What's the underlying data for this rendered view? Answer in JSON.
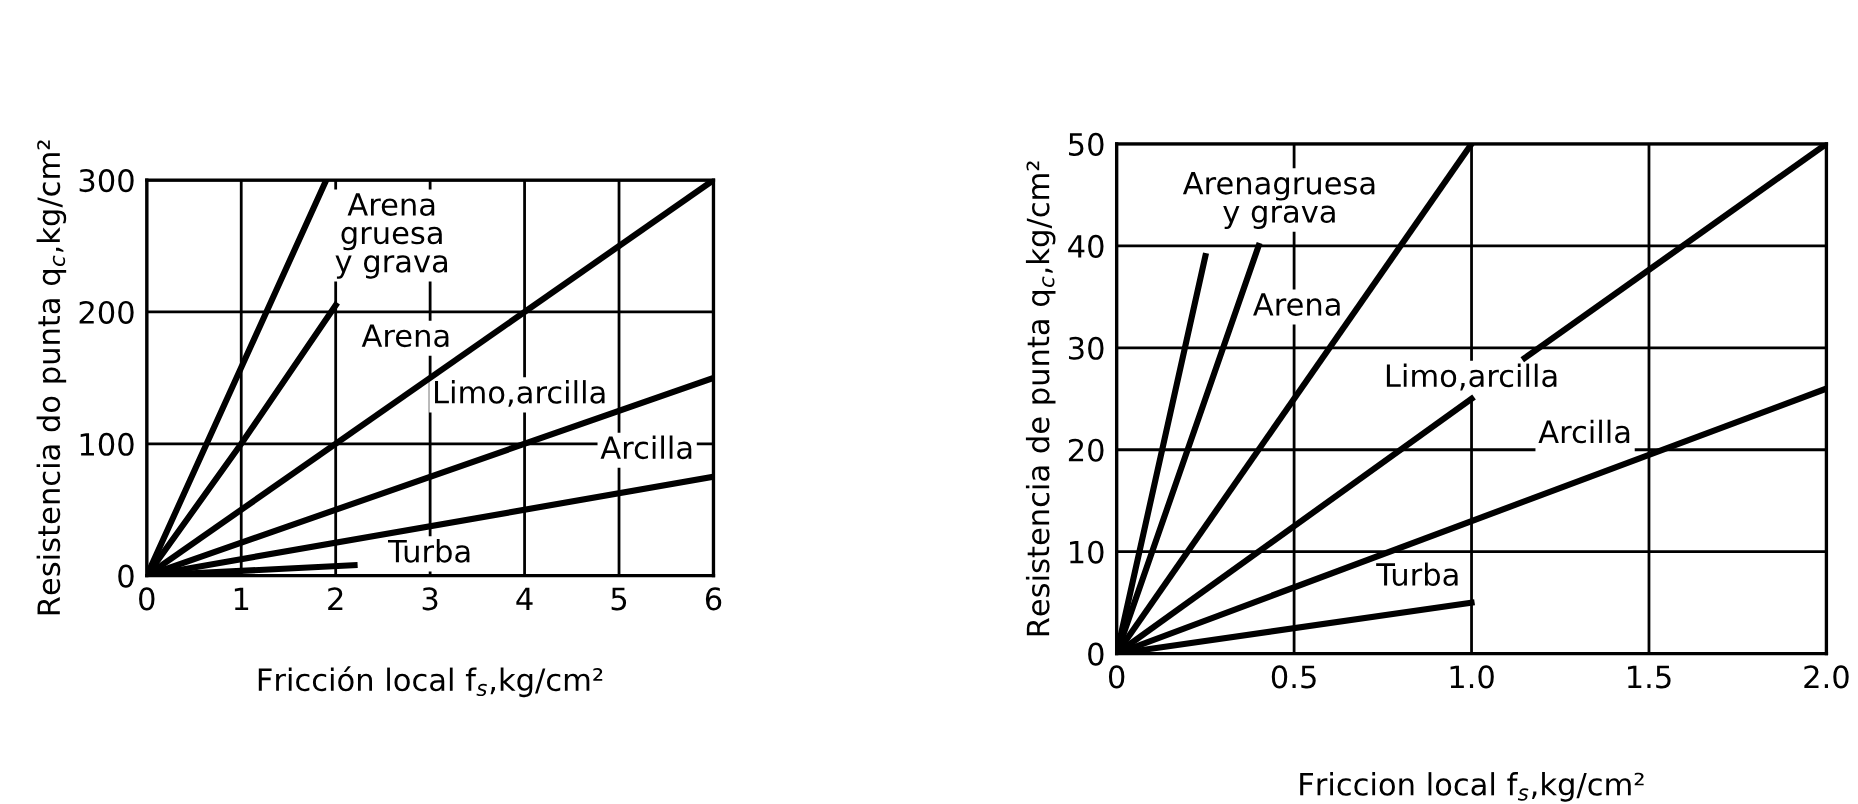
{
  "chart_data": [
    {
      "type": "line",
      "xlabel": "Fricción local f$_{s}$,kg/cm²",
      "ylabel": "Resistencia do punta q$_{c}$,kg/cm²",
      "xlim": [
        0,
        6
      ],
      "ylim": [
        0,
        300
      ],
      "xticks": [
        0,
        1,
        2,
        3,
        4,
        5,
        6
      ],
      "yticks": [
        0,
        100,
        200,
        300
      ],
      "grid": true,
      "marker": "none",
      "line_style": "solid",
      "series": [
        {
          "color": "#000000",
          "x": [
            0,
            1.9
          ],
          "values": [
            0,
            300
          ]
        },
        {
          "color": "#000000",
          "x": [
            0,
            1,
            2
          ],
          "values": [
            0,
            100,
            205
          ]
        },
        {
          "color": "#000000",
          "x": [
            0,
            6
          ],
          "values": [
            0,
            300
          ]
        },
        {
          "color": "#000000",
          "x": [
            0,
            6
          ],
          "values": [
            0,
            150
          ]
        },
        {
          "color": "#000000",
          "x": [
            0,
            6
          ],
          "values": [
            0,
            75
          ]
        },
        {
          "color": "#000000",
          "x": [
            0,
            2.2
          ],
          "values": [
            0,
            8
          ]
        }
      ],
      "annotations": [
        "Arena\ngruesa\ny grava",
        "Arena",
        "Limo,arcilla",
        "Arcilla",
        "Turba"
      ]
    },
    {
      "type": "line",
      "xlabel": "Friccion local f$_{s}$,kg/cm²",
      "ylabel": "Resistencia de punta q$_{c}$,kg/cm²",
      "xlim": [
        0,
        2
      ],
      "ylim": [
        0,
        50
      ],
      "xticks": [
        0,
        0.5,
        {
          "value": 1,
          "label": "1.0"
        },
        1.5,
        "2.0"
      ],
      "yticks": [
        0,
        10,
        20,
        30,
        40,
        50
      ],
      "grid": true,
      "marker": "none",
      "line_style": "solid",
      "series": [
        {
          "color": "#000000",
          "x": [
            0,
            0.25
          ],
          "values": [
            0,
            39
          ]
        },
        {
          "color": "#000000",
          "x": [
            0,
            0.4
          ],
          "values": [
            0,
            40
          ]
        },
        {
          "color": "#000000",
          "x": [
            0,
            1.0
          ],
          "values": [
            0,
            50
          ]
        },
        {
          "color": "#000000",
          "x": [
            0,
            1.0
          ],
          "values": [
            0,
            25
          ]
        },
        {
          "color": "#000000",
          "x": [
            0,
            2.0
          ],
          "values": [
            0,
            26
          ]
        },
        {
          "color": "#000000",
          "x": [
            0,
            1.0
          ],
          "values": [
            0,
            5
          ]
        },
        {
          "color": "#000000",
          "x": [
            1.15,
            2.0
          ],
          "values": [
            29,
            50
          ]
        }
      ],
      "annotations": [
        "Arenagruesa\ny grava",
        "Arena",
        "Limo,arcilla",
        "Arcilla",
        "Turba"
      ]
    }
  ]
}
